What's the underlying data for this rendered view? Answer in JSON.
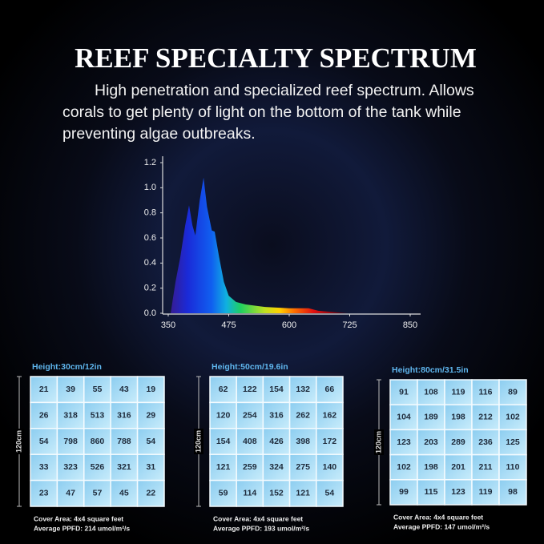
{
  "header": {
    "title": "REEF SPECIALTY SPECTRUM",
    "text": "High penetration and specialized reef spectrum. Allows corals to get plenty of light on the bottom of the tank while preventing algae outbreaks."
  },
  "chart_data": {
    "type": "area",
    "x": [
      355,
      365,
      375,
      385,
      393,
      400,
      406,
      415,
      423,
      430,
      440,
      446,
      455,
      465,
      475,
      490,
      510,
      550,
      600,
      640,
      660,
      690,
      720
    ],
    "values": [
      0,
      0.25,
      0.45,
      0.7,
      0.86,
      0.7,
      0.62,
      0.9,
      1.08,
      0.85,
      0.66,
      0.65,
      0.45,
      0.25,
      0.14,
      0.09,
      0.07,
      0.05,
      0.04,
      0.04,
      0.02,
      0.01,
      0
    ],
    "xlim": [
      350,
      850
    ],
    "xticks": [
      350,
      475,
      600,
      725,
      850
    ],
    "ylim": [
      0,
      1.2
    ],
    "yticks": [
      {
        "value": 0,
        "label": "0.0"
      },
      0.2,
      0.4,
      0.6,
      0.8,
      {
        "value": 1,
        "label": "1.0"
      },
      1.2
    ]
  },
  "panels": [
    {
      "height": "Height:30cm/12in",
      "side": "120cm",
      "rows": [
        [
          "21",
          "39",
          "55",
          "43",
          "19"
        ],
        [
          "26",
          "318",
          "513",
          "316",
          "29"
        ],
        [
          "54",
          "798",
          "860",
          "788",
          "54"
        ],
        [
          "33",
          "323",
          "526",
          "321",
          "31"
        ],
        [
          "23",
          "47",
          "57",
          "45",
          "22"
        ]
      ],
      "cover": "Cover Area: 4x4 square feet",
      "ppfd": "Average PPFD: 214 umol/m²/s"
    },
    {
      "height": "Height:50cm/19.6in",
      "side": "120cm",
      "rows": [
        [
          "62",
          "122",
          "154",
          "132",
          "66"
        ],
        [
          "120",
          "254",
          "316",
          "262",
          "162"
        ],
        [
          "154",
          "408",
          "426",
          "398",
          "172"
        ],
        [
          "121",
          "259",
          "324",
          "275",
          "140"
        ],
        [
          "59",
          "114",
          "152",
          "121",
          "54"
        ]
      ],
      "cover": "Cover Area: 4x4 square feet",
      "ppfd": "Average PPFD: 193 umol/m²/s"
    },
    {
      "height": "Height:80cm/31.5in",
      "side": "120cm",
      "rows": [
        [
          "91",
          "108",
          "119",
          "116",
          "89"
        ],
        [
          "104",
          "189",
          "198",
          "212",
          "102"
        ],
        [
          "123",
          "203",
          "289",
          "236",
          "125"
        ],
        [
          "102",
          "198",
          "201",
          "211",
          "110"
        ],
        [
          "99",
          "115",
          "123",
          "119",
          "98"
        ]
      ],
      "cover": "Cover Area: 4x4 square feet",
      "ppfd": "Average PPFD: 147 umol/m²/s"
    }
  ]
}
